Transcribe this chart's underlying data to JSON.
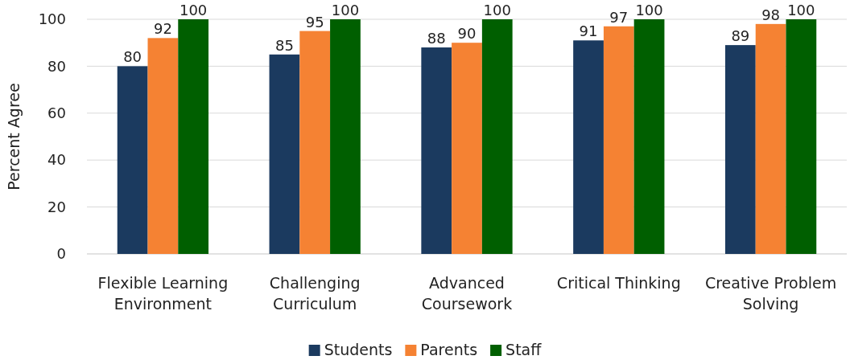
{
  "chart_data": {
    "type": "bar",
    "ylabel": "Percent Agree",
    "categories": [
      "Flexible Learning Environment",
      "Challenging Curriculum",
      "Advanced Coursework",
      "Critical Thinking",
      "Creative Problem Solving"
    ],
    "series": [
      {
        "name": "Students",
        "color": "#1b3a5f",
        "values": [
          80,
          85,
          88,
          91,
          89
        ]
      },
      {
        "name": "Parents",
        "color": "#f58233",
        "values": [
          92,
          95,
          90,
          97,
          98
        ]
      },
      {
        "name": "Staff",
        "color": "#005f00",
        "values": [
          100,
          100,
          100,
          100,
          100
        ]
      }
    ],
    "ylim": [
      0,
      100
    ],
    "yticks": [
      0,
      20,
      40,
      60,
      80,
      100
    ],
    "grid": "y",
    "legend": "bottom",
    "data_labels": true
  }
}
